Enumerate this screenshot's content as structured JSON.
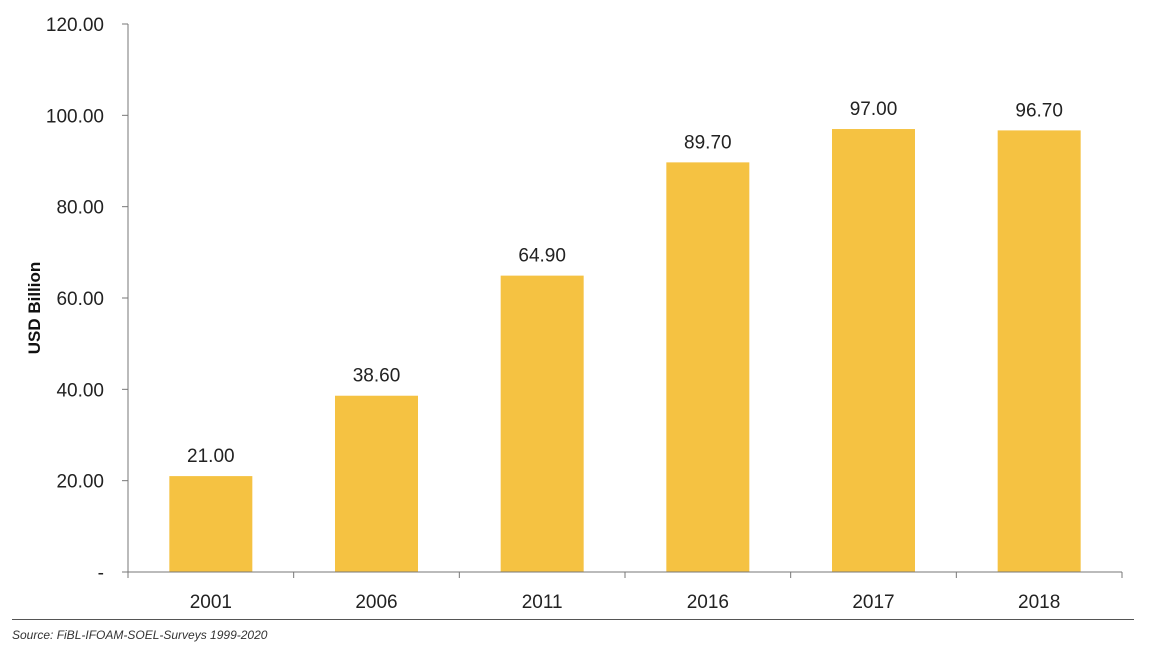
{
  "chart_data": {
    "type": "bar",
    "categories": [
      "2001",
      "2006",
      "2011",
      "2016",
      "2017",
      "2018"
    ],
    "values": [
      21.0,
      38.6,
      64.9,
      89.7,
      97.0,
      96.7
    ],
    "data_labels": [
      "21.00",
      "38.60",
      "64.90",
      "89.70",
      "97.00",
      "96.70"
    ],
    "title": "",
    "xlabel": "",
    "ylabel": "USD Billion",
    "ylim": [
      0,
      120
    ],
    "yticks": [
      0,
      20,
      40,
      60,
      80,
      100,
      120
    ],
    "ytick_labels": [
      "-",
      "20.00",
      "40.00",
      "60.00",
      "80.00",
      "100.00",
      "120.00"
    ],
    "grid": false,
    "bar_color": "#F5C242"
  },
  "footer": {
    "source": "Source: FiBL-IFOAM-SOEL-Surveys 1999-2020"
  }
}
